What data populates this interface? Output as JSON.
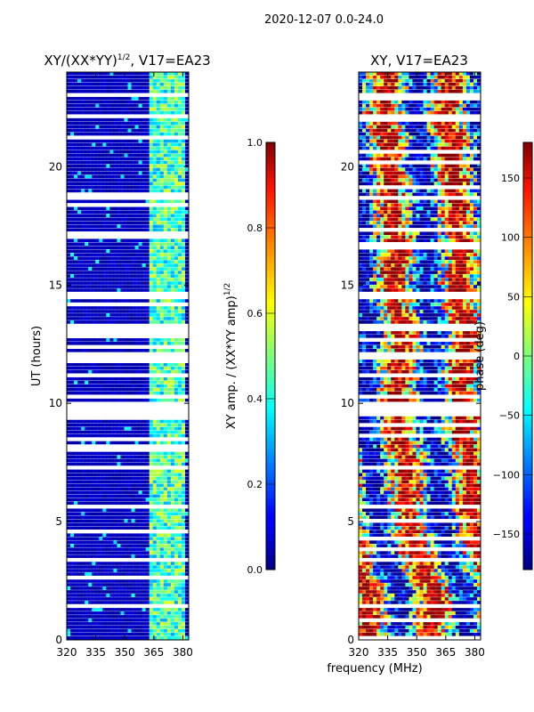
{
  "suptitle": "2020-12-07 0.0-24.0",
  "xlabel": "frequency (MHz)",
  "colors": {
    "masked": "#ffffff",
    "axis": "#000000"
  },
  "chart_data": [
    {
      "type": "heatmap",
      "title": "XY/(XX*YY)",
      "title_sup": "1/2",
      "title_suffix": ", V17=EA23",
      "ylabel": "UT (hours)",
      "xlim": [
        320,
        383
      ],
      "ylim": [
        0,
        24
      ],
      "xticks": [
        "320",
        "335",
        "350",
        "365",
        "380"
      ],
      "xtick_values": [
        320,
        335,
        350,
        365,
        380
      ],
      "yticks": [
        "0",
        "5",
        "10",
        "15",
        "20"
      ],
      "ytick_values": [
        0,
        5,
        10,
        15,
        20
      ],
      "colormap": "jet",
      "colorbar": {
        "label": "XY amp. / (XX*YY amp)",
        "label_sup": "1/2",
        "range": [
          0.0,
          1.0
        ],
        "ticks": [
          "0.0",
          "0.2",
          "0.4",
          "0.6",
          "0.8",
          "1.0"
        ],
        "tick_values": [
          0.0,
          0.2,
          0.4,
          0.6,
          0.8,
          1.0
        ]
      },
      "gaps_ut_hours": [
        [
          9.5,
          10.0
        ],
        [
          13.1,
          13.4
        ],
        [
          11.9,
          12.1
        ],
        [
          18.6,
          18.8
        ],
        [
          5.5,
          5.7
        ],
        [
          1.4,
          1.5
        ]
      ],
      "notes": "mostly low amplitude (~0.05) below 362 MHz; bright band 362-380 MHz (~0.3-0.6)"
    },
    {
      "type": "heatmap",
      "title": "XY, V17=EA23",
      "xlim": [
        320,
        383
      ],
      "ylim": [
        0,
        24
      ],
      "xticks": [
        "320",
        "335",
        "350",
        "365",
        "380"
      ],
      "xtick_values": [
        320,
        335,
        350,
        365,
        380
      ],
      "yticks": [
        "0",
        "5",
        "10",
        "15",
        "20"
      ],
      "ytick_values": [
        0,
        5,
        10,
        15,
        20
      ],
      "colormap": "jet",
      "colorbar": {
        "label": "phase (deg)",
        "range": [
          -180,
          180
        ],
        "ticks": [
          "−150",
          "−100",
          "−50",
          "0",
          "50",
          "100",
          "150"
        ],
        "tick_values": [
          -150,
          -100,
          -50,
          0,
          50,
          100,
          150
        ]
      },
      "gaps_ut_hours": [
        [
          9.5,
          10.0
        ],
        [
          13.1,
          13.4
        ],
        [
          11.9,
          12.1
        ],
        [
          18.6,
          18.8
        ],
        [
          5.5,
          5.7
        ],
        [
          1.4,
          1.5
        ]
      ],
      "notes": "phase spans full -180..180 deg, noisy with horizontal banding"
    }
  ]
}
